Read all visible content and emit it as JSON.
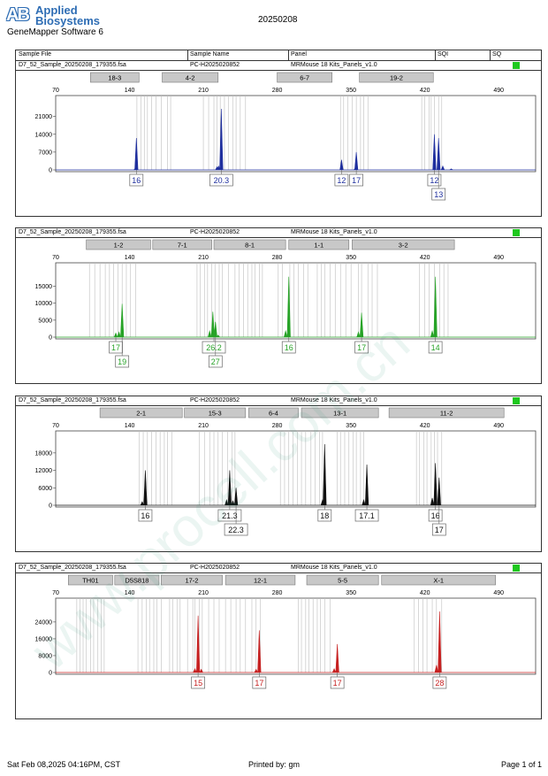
{
  "header": {
    "logo_mark": "AB",
    "logo_line1": "Applied",
    "logo_line2": "Biosystems",
    "software": "GeneMapper Software 6",
    "run_id": "20250208",
    "columns": {
      "sample_file": "Sample File",
      "sample_name": "Sample Name",
      "panel": "Panel",
      "sqi": "SQI",
      "sq": "SQ"
    }
  },
  "watermark": "www.procell.com.cn",
  "footer": {
    "datetime": "Sat Feb 08,2025 04:16PM, CST",
    "printed_by": "Printed by: gm",
    "page": "Page 1 of 1"
  },
  "colors": {
    "blue": "#1f2f9e",
    "green": "#27a327",
    "black": "#111111",
    "red": "#c62020",
    "sq_green": "#1ec81e"
  },
  "chart_data": [
    {
      "type": "line",
      "name": "blue-panel",
      "sample_file": "D7_52_Sample_20250208_179355.fsa",
      "sample_name": "PC-H2025020852",
      "panel": "MRMouse 18 Kits_Panels_v1.0",
      "color": "#1f2f9e",
      "xlim": [
        70,
        525
      ],
      "x_ticks": [
        70,
        140,
        210,
        280,
        350,
        420,
        490
      ],
      "ylim": [
        0,
        24000
      ],
      "y_ticks": [
        0,
        7000,
        14000,
        21000
      ],
      "markers": [
        {
          "label": "18-3",
          "start": 103,
          "end": 149
        },
        {
          "label": "4-2",
          "start": 171,
          "end": 224
        },
        {
          "label": "6-7",
          "start": 280,
          "end": 332
        },
        {
          "label": "19-2",
          "start": 358,
          "end": 428
        }
      ],
      "bin_lines": [
        147,
        151,
        154,
        157,
        161,
        165,
        170,
        176,
        179,
        210,
        215,
        220,
        223,
        226,
        230,
        234,
        238,
        241,
        245,
        250,
        340,
        343,
        347,
        351,
        355,
        359,
        362,
        366,
        417,
        420,
        424,
        426,
        429,
        433,
        436
      ],
      "peaks": [
        {
          "x": 146.5,
          "y": 12500
        },
        {
          "x": 145.5,
          "y": 500
        },
        {
          "x": 223,
          "y": 1200
        },
        {
          "x": 224.5,
          "y": 1500
        },
        {
          "x": 227,
          "y": 24000
        },
        {
          "x": 341,
          "y": 4000
        },
        {
          "x": 355,
          "y": 7000
        },
        {
          "x": 354,
          "y": 500
        },
        {
          "x": 429,
          "y": 14000
        },
        {
          "x": 433,
          "y": 12500
        },
        {
          "x": 437,
          "y": 1500
        },
        {
          "x": 445,
          "y": 400
        }
      ],
      "labels": [
        {
          "x": 146.5,
          "text": "16",
          "row": 1
        },
        {
          "x": 227,
          "text": "20.3",
          "row": 1
        },
        {
          "x": 341,
          "text": "12",
          "row": 1
        },
        {
          "x": 355,
          "text": "17",
          "row": 1
        },
        {
          "x": 429,
          "text": "12",
          "row": 1
        },
        {
          "x": 433,
          "text": "13",
          "row": 2
        }
      ]
    },
    {
      "type": "line",
      "name": "green-panel",
      "sample_file": "D7_52_Sample_20250208_179355.fsa",
      "sample_name": "PC-H2025020852",
      "panel": "MRMouse 18 Kits_Panels_v1.0",
      "color": "#27a327",
      "xlim": [
        70,
        525
      ],
      "x_ticks": [
        70,
        140,
        210,
        280,
        350,
        420,
        490
      ],
      "ylim": [
        0,
        18000
      ],
      "y_ticks": [
        0,
        5000,
        10000,
        15000
      ],
      "markers": [
        {
          "label": "1-2",
          "start": 99,
          "end": 160
        },
        {
          "label": "7-1",
          "start": 162,
          "end": 218
        },
        {
          "label": "8-1",
          "start": 220,
          "end": 288
        },
        {
          "label": "1-1",
          "start": 291,
          "end": 348
        },
        {
          "label": "3-2",
          "start": 351,
          "end": 448
        }
      ],
      "bin_lines": [
        102,
        107,
        112,
        117,
        121,
        125,
        129,
        133,
        137,
        141,
        146,
        204,
        207,
        211,
        214,
        218,
        221,
        225,
        228,
        234,
        240,
        244,
        248,
        252,
        256,
        259,
        263,
        266,
        281,
        285,
        292,
        296,
        300,
        305,
        309,
        318,
        322,
        325,
        330,
        335,
        340,
        345,
        350,
        357,
        360,
        366,
        370,
        375,
        415,
        420,
        424,
        429,
        434,
        438,
        442
      ],
      "peaks": [
        {
          "x": 127,
          "y": 1200
        },
        {
          "x": 130,
          "y": 1500
        },
        {
          "x": 133,
          "y": 9800
        },
        {
          "x": 216,
          "y": 1800
        },
        {
          "x": 219,
          "y": 7500
        },
        {
          "x": 221.5,
          "y": 4500
        },
        {
          "x": 224,
          "y": 600
        },
        {
          "x": 288,
          "y": 1800
        },
        {
          "x": 291,
          "y": 17800
        },
        {
          "x": 357,
          "y": 1500
        },
        {
          "x": 360,
          "y": 7200
        },
        {
          "x": 427,
          "y": 1800
        },
        {
          "x": 430,
          "y": 17800
        }
      ],
      "labels": [
        {
          "x": 127,
          "text": "17",
          "row": 1
        },
        {
          "x": 133,
          "text": "19",
          "row": 2
        },
        {
          "x": 220,
          "text": "26.2",
          "row": 1
        },
        {
          "x": 221.5,
          "text": "27",
          "row": 2
        },
        {
          "x": 291,
          "text": "16",
          "row": 1
        },
        {
          "x": 360,
          "text": "17",
          "row": 1
        },
        {
          "x": 430,
          "text": "14",
          "row": 1
        }
      ]
    },
    {
      "type": "line",
      "name": "black-panel",
      "sample_file": "D7_52_Sample_20250208_179355.fsa",
      "sample_name": "PC-H2025020852",
      "panel": "MRMouse 18 Kits_Panels_v1.0",
      "color": "#111111",
      "xlim": [
        70,
        525
      ],
      "x_ticks": [
        70,
        140,
        210,
        280,
        350,
        420,
        490
      ],
      "ylim": [
        0,
        21000
      ],
      "y_ticks": [
        0,
        6000,
        12000,
        18000
      ],
      "markers": [
        {
          "label": "2-1",
          "start": 112,
          "end": 190
        },
        {
          "label": "15-3",
          "start": 192,
          "end": 250
        },
        {
          "label": "6-4",
          "start": 253,
          "end": 300
        },
        {
          "label": "13-1",
          "start": 303,
          "end": 376
        },
        {
          "label": "11-2",
          "start": 386,
          "end": 495
        }
      ],
      "bin_lines": [
        149,
        153,
        157,
        161,
        165,
        169,
        173,
        176,
        180,
        206,
        211,
        216,
        220,
        224,
        228,
        233,
        237,
        240,
        283,
        287,
        291,
        295,
        299,
        303,
        307,
        312,
        316,
        320,
        323,
        337,
        340,
        344,
        348,
        352,
        355,
        359,
        362,
        412,
        415,
        419,
        422,
        426,
        429,
        432,
        436
      ],
      "peaks": [
        {
          "x": 152,
          "y": 1200
        },
        {
          "x": 155,
          "y": 12000
        },
        {
          "x": 232,
          "y": 1800
        },
        {
          "x": 235,
          "y": 12000
        },
        {
          "x": 238,
          "y": 1500
        },
        {
          "x": 241,
          "y": 6000
        },
        {
          "x": 323,
          "y": 1800
        },
        {
          "x": 325,
          "y": 21000
        },
        {
          "x": 362,
          "y": 1800
        },
        {
          "x": 365,
          "y": 14000
        },
        {
          "x": 427,
          "y": 2500
        },
        {
          "x": 430,
          "y": 14500
        },
        {
          "x": 433.5,
          "y": 9500
        }
      ],
      "labels": [
        {
          "x": 155,
          "text": "16",
          "row": 1
        },
        {
          "x": 235,
          "text": "21.3",
          "row": 1
        },
        {
          "x": 241,
          "text": "22.3",
          "row": 2
        },
        {
          "x": 325,
          "text": "18",
          "row": 1
        },
        {
          "x": 365,
          "text": "17.1",
          "row": 1
        },
        {
          "x": 430,
          "text": "16",
          "row": 1
        },
        {
          "x": 433.5,
          "text": "17",
          "row": 2
        }
      ]
    },
    {
      "type": "line",
      "name": "red-panel",
      "sample_file": "D7_52_Sample_20250208_179355.fsa",
      "sample_name": "PC-H2025020852",
      "panel": "MRMouse 18 Kits_Panels_v1.0",
      "color": "#c62020",
      "xlim": [
        70,
        525
      ],
      "x_ticks": [
        70,
        140,
        210,
        280,
        350,
        420,
        490
      ],
      "ylim": [
        0,
        29000
      ],
      "y_ticks": [
        0,
        8000,
        16000,
        24000
      ],
      "markers": [
        {
          "label": "TH01",
          "start": 82,
          "end": 124
        },
        {
          "label": "D5S818",
          "start": 126,
          "end": 168
        },
        {
          "label": "17-2",
          "start": 170,
          "end": 228
        },
        {
          "label": "12-1",
          "start": 231,
          "end": 297
        },
        {
          "label": "5-5",
          "start": 308,
          "end": 376
        },
        {
          "label": "X-1",
          "start": 379,
          "end": 487
        }
      ],
      "bin_lines": [
        90,
        93,
        96,
        99,
        103,
        106,
        110,
        113,
        116,
        148,
        152,
        156,
        159,
        163,
        166,
        170,
        178,
        181,
        185,
        188,
        195,
        200,
        202,
        206,
        209,
        215,
        220,
        225,
        231,
        236,
        241,
        245,
        250,
        256,
        260,
        264,
        300,
        303,
        307,
        310,
        314,
        318,
        321,
        325,
        330,
        410,
        414,
        418,
        422,
        427,
        431,
        436
      ],
      "peaks": [
        {
          "x": 202,
          "y": 1800
        },
        {
          "x": 205,
          "y": 27000
        },
        {
          "x": 208,
          "y": 1500
        },
        {
          "x": 260,
          "y": 1500
        },
        {
          "x": 263,
          "y": 20000
        },
        {
          "x": 334,
          "y": 1800
        },
        {
          "x": 337,
          "y": 13500
        },
        {
          "x": 431,
          "y": 3500
        },
        {
          "x": 434,
          "y": 29000
        }
      ],
      "labels": [
        {
          "x": 205,
          "text": "15",
          "row": 1
        },
        {
          "x": 263,
          "text": "17",
          "row": 1
        },
        {
          "x": 337,
          "text": "17",
          "row": 1
        },
        {
          "x": 434,
          "text": "28",
          "row": 1
        }
      ]
    }
  ]
}
